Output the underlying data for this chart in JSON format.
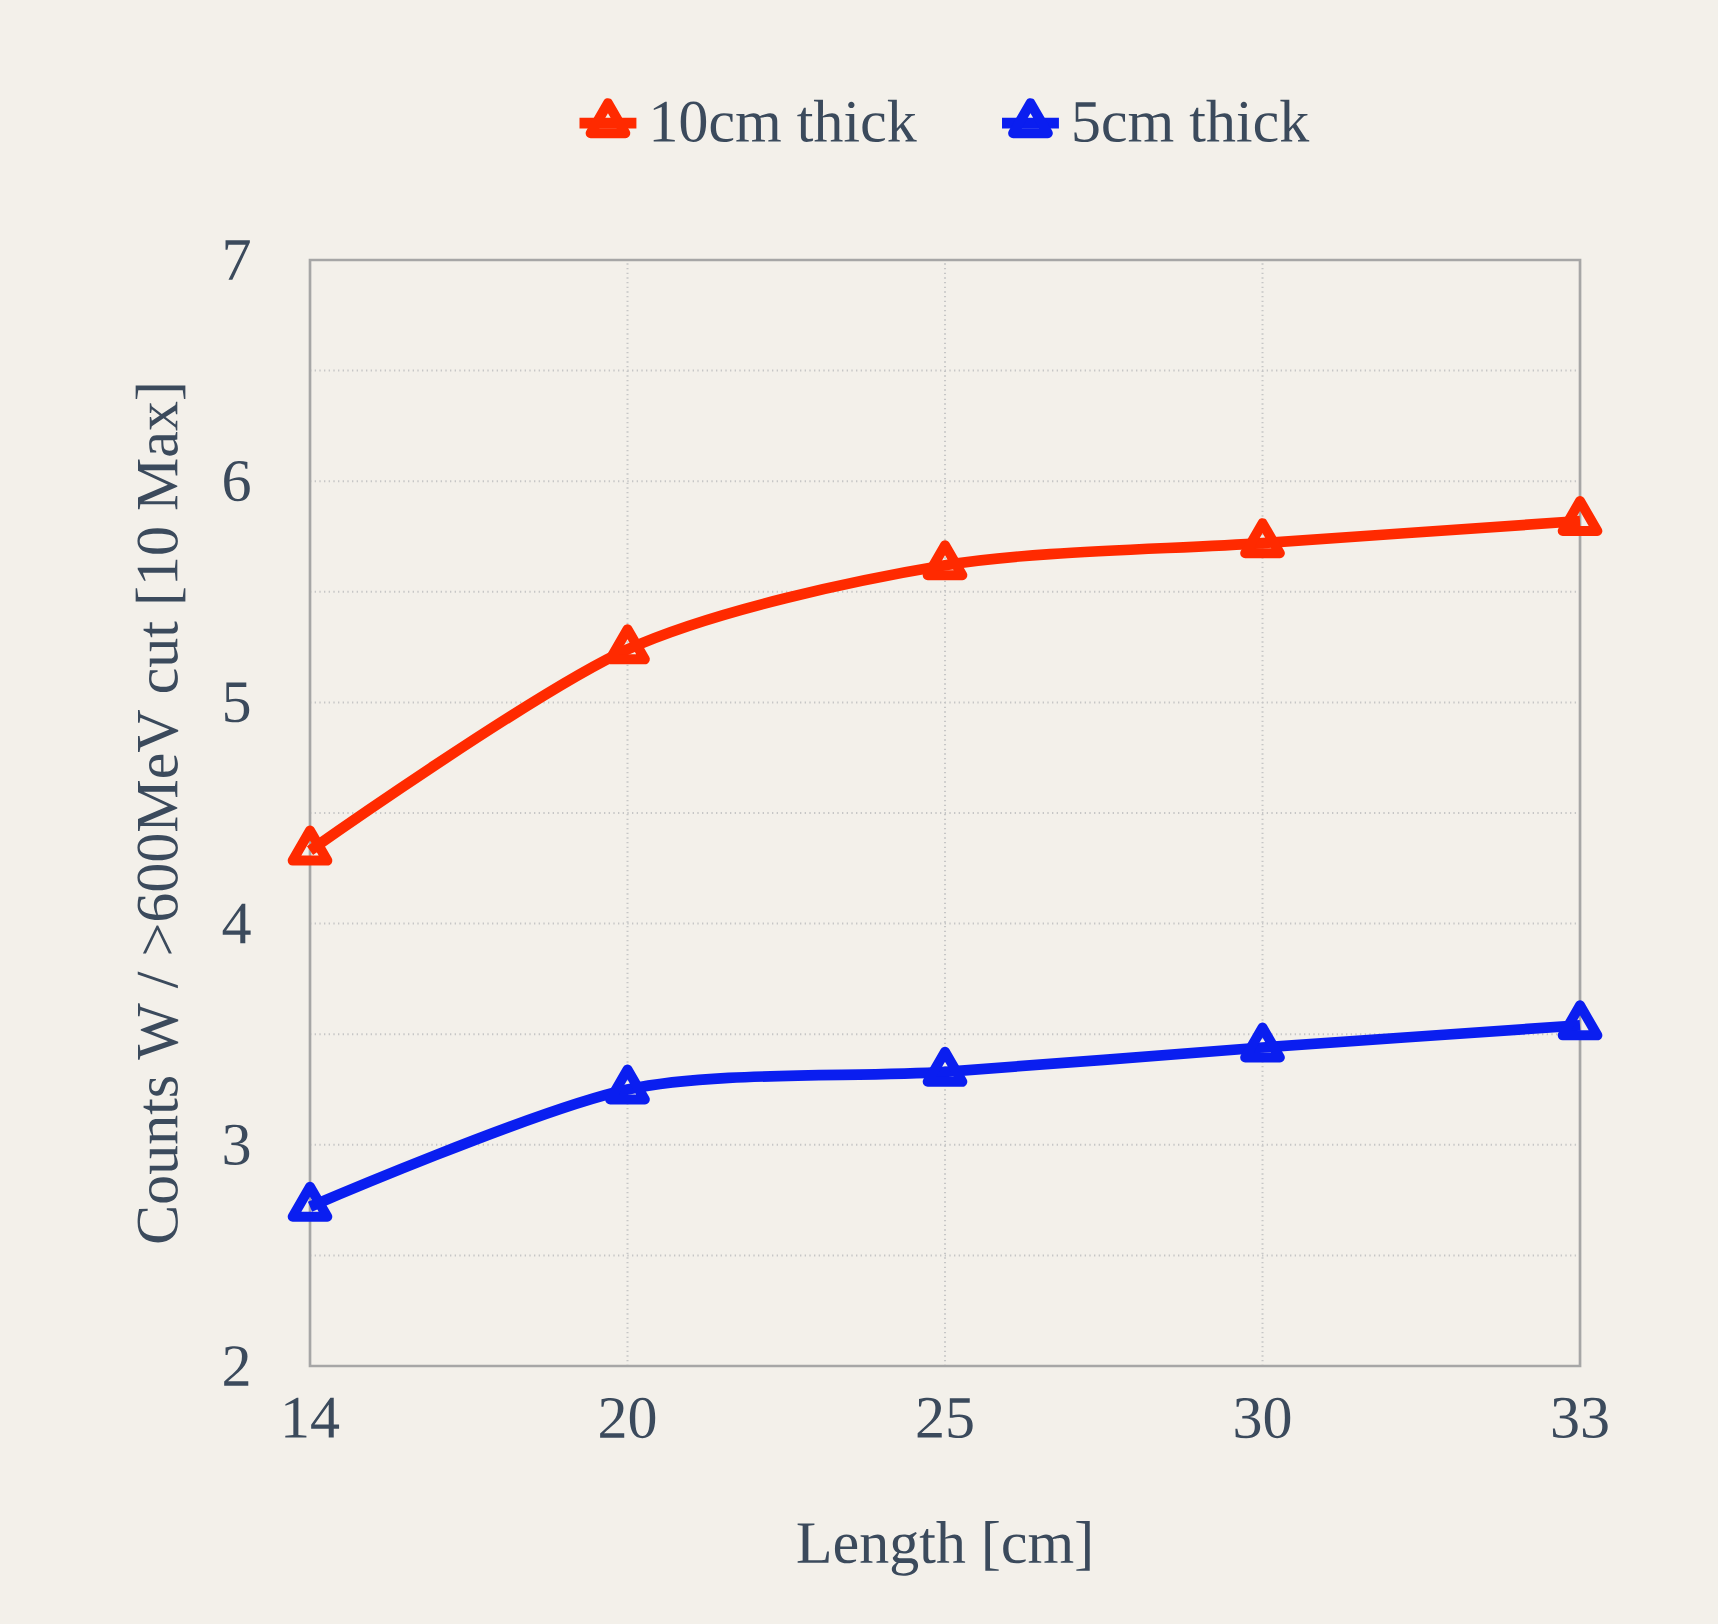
{
  "chart_data": {
    "type": "line",
    "xlabel": "Length [cm]",
    "ylabel": "Counts W / >600MeV cut [10 Max]",
    "categories": [
      "14",
      "20",
      "25",
      "30",
      "33"
    ],
    "series": [
      {
        "name": "10cm thick",
        "color": "#ff2a00",
        "values": [
          4.33,
          5.24,
          5.62,
          5.72,
          5.82
        ]
      },
      {
        "name": "5cm thick",
        "color": "#0a1ef0",
        "values": [
          2.72,
          3.25,
          3.33,
          3.44,
          3.54
        ]
      }
    ],
    "ylim": [
      2,
      7
    ],
    "yticks": [
      2,
      {
        "value": 2.5,
        "label": null
      },
      3,
      {
        "value": 3.5,
        "label": null
      },
      4,
      {
        "value": 4.5,
        "label": null
      },
      5,
      {
        "value": 5.5,
        "label": null
      },
      6,
      {
        "value": 6.5,
        "label": null
      },
      7
    ],
    "grid": true,
    "legend": "top",
    "marker": "triangle",
    "line_style": "solid"
  }
}
